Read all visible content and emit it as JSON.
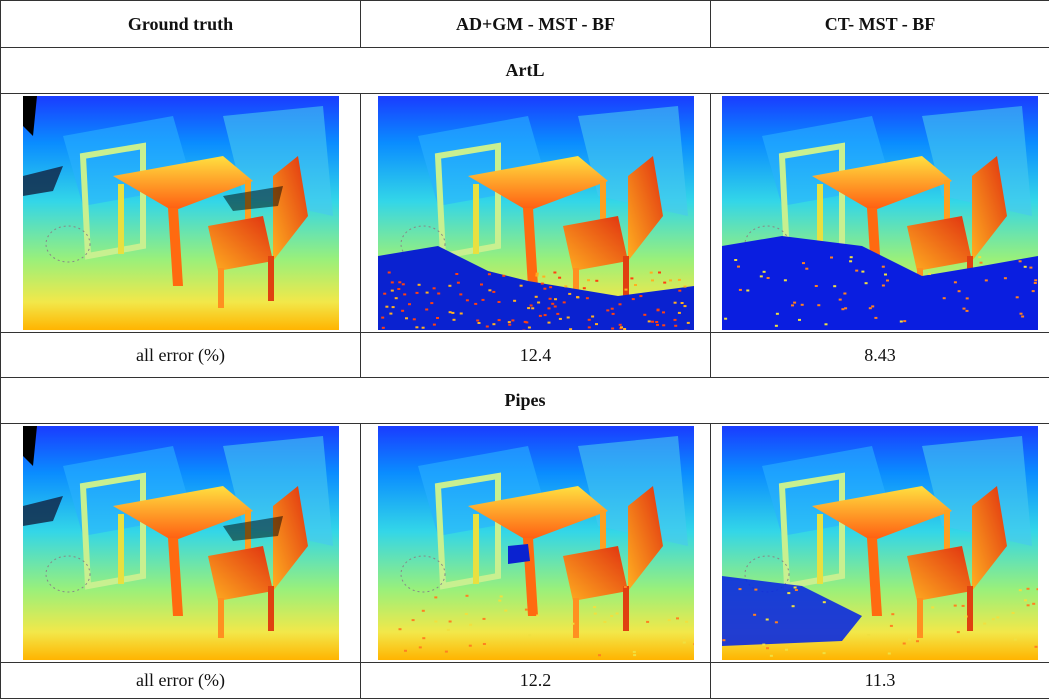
{
  "table": {
    "header": [
      "Ground truth",
      "AD+GM - MST - BF",
      "CT- MST - BF"
    ],
    "sections": [
      {
        "title": "ArtL",
        "error_label": "all error (%)",
        "errors": [
          "12.4",
          "8.43"
        ]
      },
      {
        "title": "Pipes",
        "error_label": "all error (%)",
        "errors": [
          "12.2",
          "11.3"
        ]
      }
    ]
  }
}
